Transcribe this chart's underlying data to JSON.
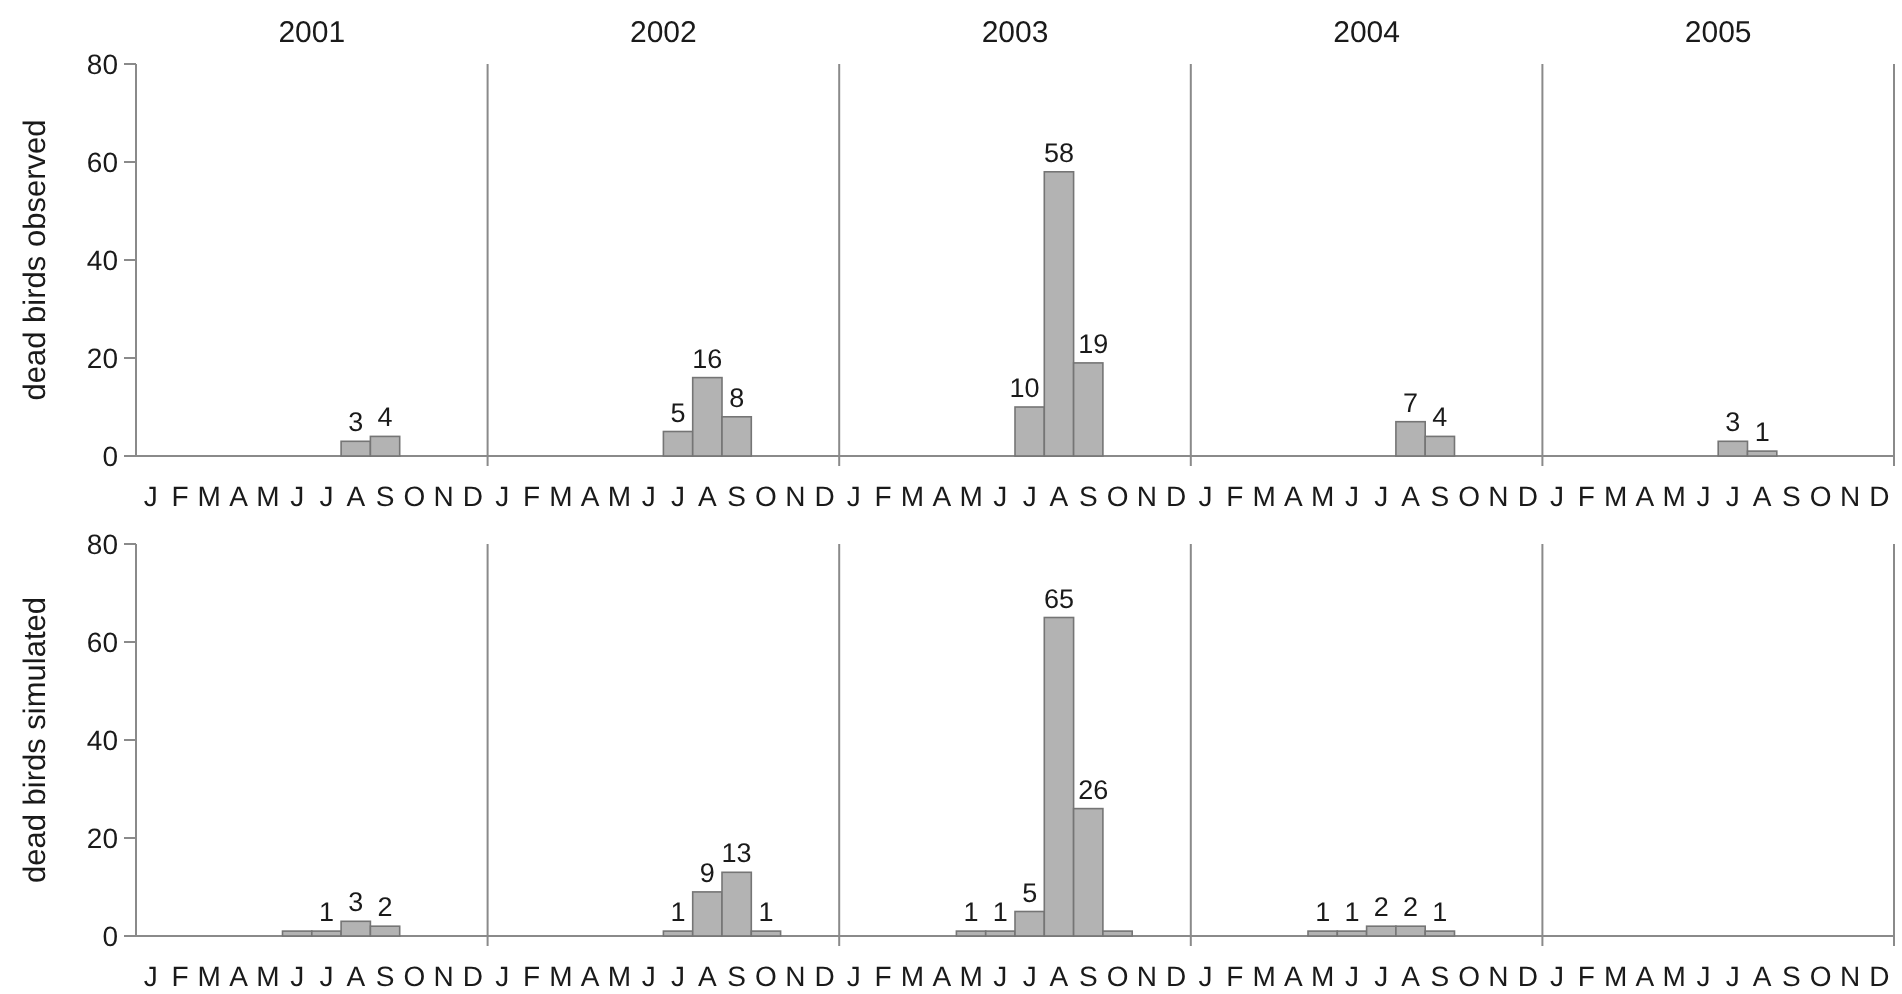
{
  "chart_data": [
    {
      "type": "bar",
      "ylabel": "dead birds observed",
      "categories": [
        "J",
        "F",
        "M",
        "A",
        "M",
        "J",
        "J",
        "A",
        "S",
        "O",
        "N",
        "D",
        "J",
        "F",
        "M",
        "A",
        "M",
        "J",
        "J",
        "A",
        "S",
        "O",
        "N",
        "D",
        "J",
        "F",
        "M",
        "A",
        "M",
        "J",
        "J",
        "A",
        "S",
        "O",
        "N",
        "D",
        "J",
        "F",
        "M",
        "A",
        "M",
        "J",
        "J",
        "A",
        "S",
        "O",
        "N",
        "D",
        "J",
        "F",
        "M",
        "A",
        "M",
        "J",
        "J",
        "A",
        "S",
        "O",
        "N",
        "D"
      ],
      "values": [
        null,
        null,
        null,
        null,
        null,
        null,
        null,
        3,
        4,
        null,
        null,
        null,
        null,
        null,
        null,
        null,
        null,
        null,
        5,
        16,
        8,
        null,
        null,
        null,
        null,
        null,
        null,
        null,
        null,
        null,
        10,
        58,
        19,
        null,
        null,
        null,
        null,
        null,
        null,
        null,
        null,
        null,
        null,
        7,
        4,
        null,
        null,
        null,
        null,
        null,
        null,
        null,
        null,
        null,
        3,
        1,
        null,
        null,
        null,
        null
      ],
      "color": "#b3b3b3",
      "ylim": [
        0,
        80
      ],
      "yticks": [
        0,
        20,
        40,
        60,
        80
      ],
      "data_labels": true,
      "annotations": [
        "2001",
        "2002",
        "2003",
        "2004",
        "2005"
      ]
    },
    {
      "type": "bar",
      "ylabel": "dead birds simulated",
      "categories": [
        "J",
        "F",
        "M",
        "A",
        "M",
        "J",
        "J",
        "A",
        "S",
        "O",
        "N",
        "D",
        "J",
        "F",
        "M",
        "A",
        "M",
        "J",
        "J",
        "A",
        "S",
        "O",
        "N",
        "D",
        "J",
        "F",
        "M",
        "A",
        "M",
        "J",
        "J",
        "A",
        "S",
        "O",
        "N",
        "D",
        "J",
        "F",
        "M",
        "A",
        "M",
        "J",
        "J",
        "A",
        "S",
        "O",
        "N",
        "D",
        "J",
        "F",
        "M",
        "A",
        "M",
        "J",
        "J",
        "A",
        "S",
        "O",
        "N",
        "D"
      ],
      "values": [
        null,
        null,
        null,
        null,
        null,
        1,
        1,
        3,
        2,
        null,
        null,
        null,
        null,
        null,
        null,
        null,
        null,
        null,
        1,
        9,
        13,
        1,
        null,
        null,
        null,
        null,
        null,
        null,
        1,
        1,
        5,
        65,
        26,
        1,
        null,
        null,
        null,
        null,
        null,
        null,
        1,
        1,
        2,
        2,
        1,
        null,
        null,
        null,
        null,
        null,
        null,
        null,
        null,
        null,
        null,
        null,
        null,
        null,
        null,
        null
      ],
      "value_labels": [
        null,
        null,
        null,
        null,
        null,
        null,
        "1",
        "3",
        "2",
        null,
        null,
        null,
        null,
        null,
        null,
        null,
        null,
        null,
        "1",
        "9",
        "13",
        "1",
        null,
        null,
        null,
        null,
        null,
        null,
        "1",
        "1",
        "5",
        "65",
        "26",
        null,
        null,
        null,
        null,
        null,
        null,
        null,
        "1",
        "1",
        "2",
        "2",
        "1",
        null,
        null,
        null,
        null,
        null,
        null,
        null,
        null,
        null,
        null,
        null,
        null,
        null,
        null,
        null
      ],
      "color": "#b3b3b3",
      "ylim": [
        0,
        80
      ],
      "yticks": [
        0,
        20,
        40,
        60,
        80
      ]
    }
  ]
}
